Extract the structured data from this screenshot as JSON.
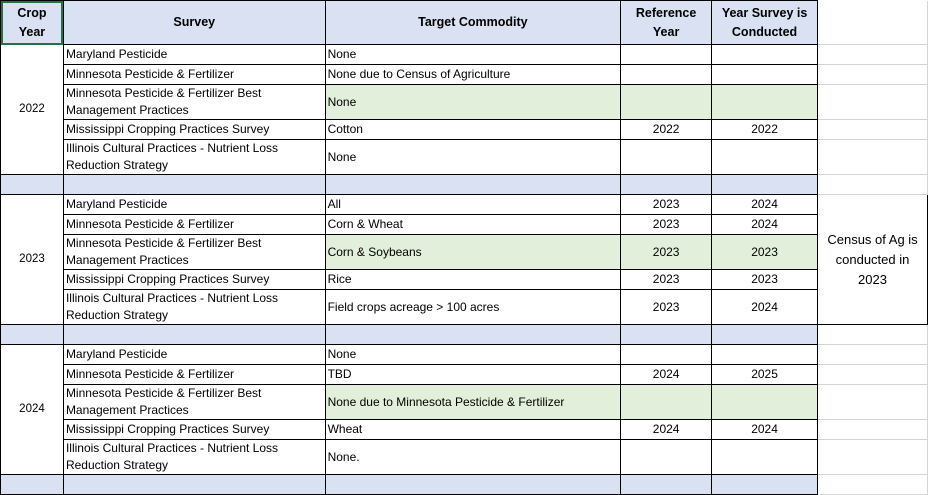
{
  "headers": {
    "crop_year": "Crop Year",
    "survey": "Survey",
    "target": "Target Commodity",
    "reference": "Reference Year",
    "conducted": "Year Survey is Conducted"
  },
  "colors": {
    "header_bg": "#d9e1f2",
    "highlight_bg": "#e2efda",
    "selection": "#217346"
  },
  "groups": [
    {
      "year": "2022",
      "rows": [
        {
          "survey": "Maryland Pesticide",
          "target": "None",
          "ref": "",
          "conducted": ""
        },
        {
          "survey": "Minnesota Pesticide & Fertilizer",
          "target": "None due to Census of Agriculture",
          "ref": "",
          "conducted": ""
        },
        {
          "survey": "Minnesota Pesticide & Fertilizer Best Management Practices",
          "target": "None",
          "ref": "",
          "conducted": ""
        },
        {
          "survey": "Mississippi Cropping Practices Survey",
          "target": "Cotton",
          "ref": "2022",
          "conducted": "2022"
        },
        {
          "survey": "Illinois Cultural Practices - Nutrient Loss Reduction Strategy",
          "target": "None",
          "ref": "",
          "conducted": ""
        }
      ]
    },
    {
      "year": "2023",
      "note": "Census of Ag is conducted in 2023",
      "rows": [
        {
          "survey": "Maryland Pesticide",
          "target": "All",
          "ref": "2023",
          "conducted": "2024"
        },
        {
          "survey": "Minnesota Pesticide & Fertilizer",
          "target": "Corn & Wheat",
          "ref": "2023",
          "conducted": "2024"
        },
        {
          "survey": "Minnesota Pesticide & Fertilizer Best Management Practices",
          "target": "Corn & Soybeans",
          "ref": "2023",
          "conducted": "2023"
        },
        {
          "survey": "Mississippi Cropping Practices Survey",
          "target": "Rice",
          "ref": "2023",
          "conducted": "2023"
        },
        {
          "survey": "Illinois Cultural Practices - Nutrient Loss Reduction Strategy",
          "target": "Field crops acreage > 100 acres",
          "ref": "2023",
          "conducted": "2024"
        }
      ]
    },
    {
      "year": "2024",
      "rows": [
        {
          "survey": "Maryland Pesticide",
          "target": "None",
          "ref": "",
          "conducted": ""
        },
        {
          "survey": "Minnesota Pesticide & Fertilizer",
          "target": "TBD",
          "ref": "2024",
          "conducted": "2025"
        },
        {
          "survey": "Minnesota Pesticide & Fertilizer Best Management Practices",
          "target": "None due to Minnesota Pesticide & Fertilizer",
          "ref": "",
          "conducted": ""
        },
        {
          "survey": "Mississippi Cropping Practices Survey",
          "target": "Wheat",
          "ref": "2024",
          "conducted": "2024"
        },
        {
          "survey": "Illinois Cultural Practices - Nutrient Loss Reduction Strategy",
          "target": "None.",
          "ref": "",
          "conducted": ""
        }
      ]
    }
  ]
}
